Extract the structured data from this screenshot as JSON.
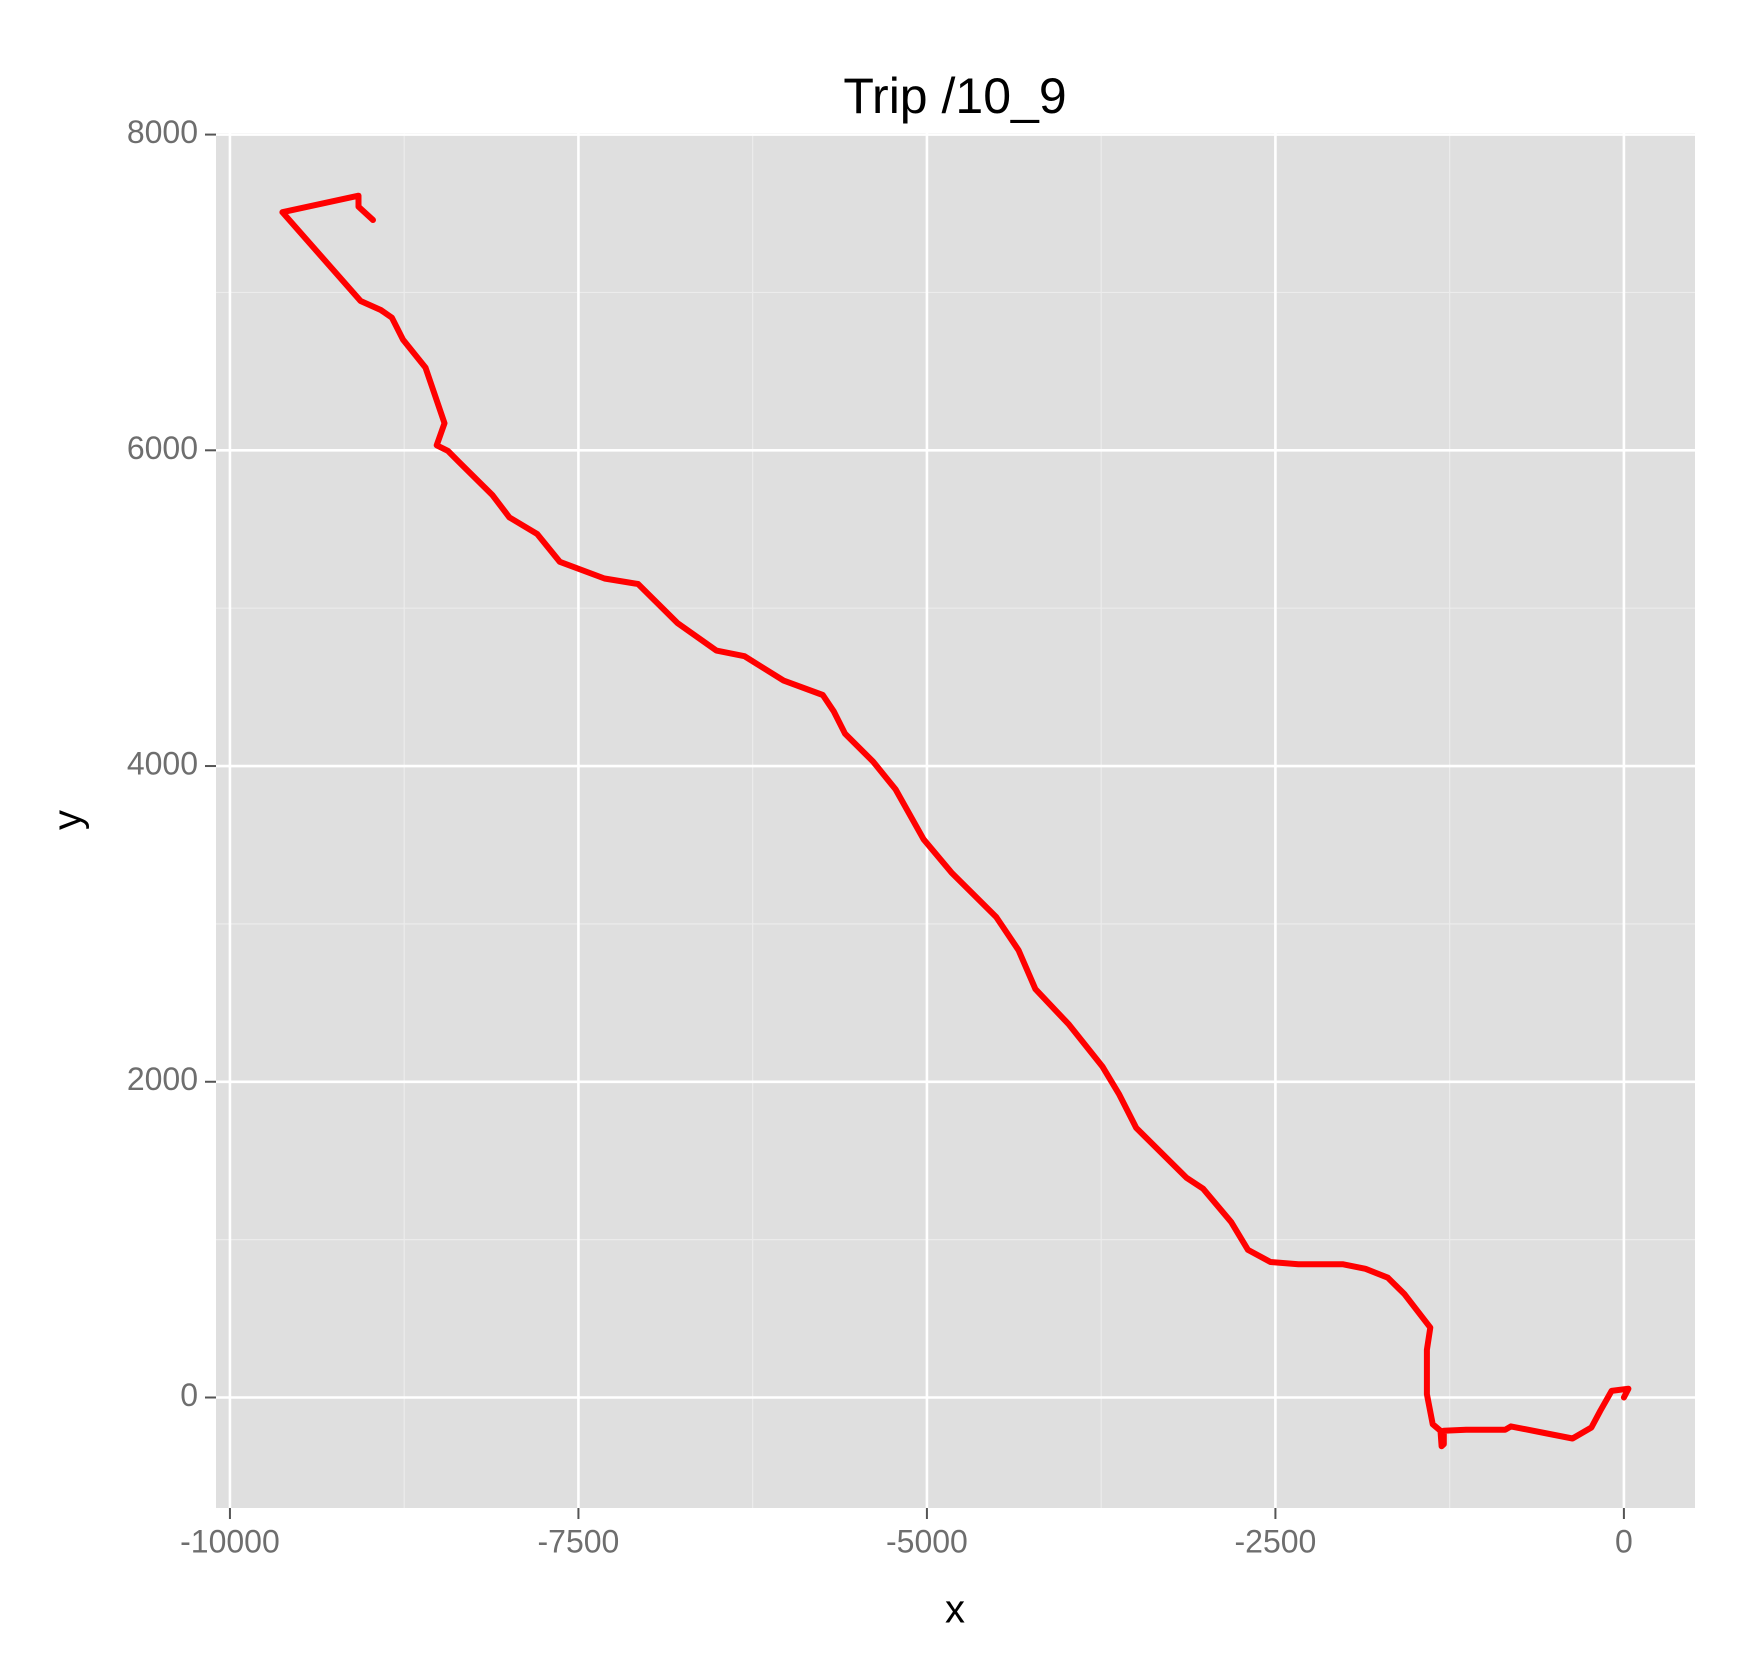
{
  "chart_data": {
    "type": "line",
    "title": "Trip /10_9",
    "x_label": "x",
    "y_label": "y",
    "x": [
      0,
      32,
      -88,
      -169,
      -233,
      -369,
      -570,
      -811,
      -851,
      -1132,
      -1292,
      -1292,
      -1308,
      -1316,
      -1372,
      -1413,
      -1413,
      -1389,
      -1573,
      -1693,
      -1854,
      -2014,
      -2336,
      -2536,
      -2697,
      -2817,
      -3018,
      -3138,
      -3499,
      -3620,
      -3740,
      -3981,
      -4222,
      -4342,
      -4503,
      -4824,
      -5024,
      -5225,
      -5386,
      -5587,
      -5667,
      -5747,
      -6028,
      -6309,
      -6510,
      -6791,
      -7072,
      -7313,
      -7634,
      -7795,
      -7995,
      -8116,
      -8357,
      -8437,
      -8517,
      -8461,
      -8597,
      -8758,
      -8838,
      -8918,
      -9063,
      -9624,
      -9078,
      -9078,
      -8974
    ],
    "series": [
      {
        "color": "#ff0000",
        "values": [
          0,
          56,
          42,
          -84,
          -190,
          -260,
          -225,
          -183,
          -204,
          -204,
          -211,
          -295,
          -309,
          -211,
          -169,
          21,
          302,
          443,
          654,
          759,
          815,
          844,
          844,
          858,
          935,
          1111,
          1322,
          1392,
          1708,
          1919,
          2095,
          2362,
          2587,
          2833,
          3044,
          3325,
          3536,
          3852,
          4028,
          4204,
          4345,
          4450,
          4541,
          4696,
          4731,
          4907,
          5153,
          5188,
          5294,
          5469,
          5575,
          5715,
          5926,
          5997,
          6032,
          6172,
          6524,
          6700,
          6840,
          6889,
          6946,
          7508,
          7613,
          7543,
          7459
        ]
      }
    ],
    "xlim": [
      -10100,
      510
    ],
    "ylim": [
      -700,
      8010
    ],
    "xticks": [
      -10000,
      -7500,
      -5000,
      -2500,
      0
    ],
    "yticks": [
      0,
      2000,
      4000,
      6000,
      8000
    ],
    "grid": true
  }
}
